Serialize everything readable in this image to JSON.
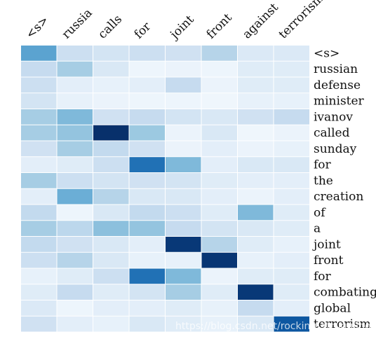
{
  "chart_data": {
    "type": "heatmap",
    "x_labels": [
      "<s>",
      "russia",
      "calls",
      "for",
      "joint",
      "front",
      "against",
      "terrorism"
    ],
    "y_labels": [
      "<s>",
      "russian",
      "defense",
      "minister",
      "ivanov",
      "called",
      "sunday",
      "for",
      "the",
      "creation",
      "of",
      "a",
      "joint",
      "front",
      "for",
      "combating",
      "global",
      "terrorism"
    ],
    "values": [
      [
        0.55,
        0.22,
        0.18,
        0.22,
        0.2,
        0.3,
        0.14,
        0.14
      ],
      [
        0.25,
        0.35,
        0.15,
        0.05,
        0.06,
        0.05,
        0.12,
        0.12
      ],
      [
        0.22,
        0.1,
        0.08,
        0.1,
        0.25,
        0.06,
        0.12,
        0.12
      ],
      [
        0.18,
        0.08,
        0.06,
        0.05,
        0.05,
        0.04,
        0.08,
        0.08
      ],
      [
        0.35,
        0.45,
        0.2,
        0.25,
        0.18,
        0.15,
        0.2,
        0.25
      ],
      [
        0.35,
        0.4,
        1.0,
        0.38,
        0.06,
        0.15,
        0.04,
        0.06
      ],
      [
        0.2,
        0.35,
        0.26,
        0.2,
        0.06,
        0.1,
        0.06,
        0.08
      ],
      [
        0.1,
        0.12,
        0.22,
        0.75,
        0.45,
        0.1,
        0.15,
        0.15
      ],
      [
        0.35,
        0.22,
        0.18,
        0.2,
        0.18,
        0.12,
        0.1,
        0.1
      ],
      [
        0.1,
        0.5,
        0.3,
        0.15,
        0.15,
        0.1,
        0.06,
        0.1
      ],
      [
        0.26,
        0.05,
        0.15,
        0.26,
        0.22,
        0.12,
        0.45,
        0.12
      ],
      [
        0.35,
        0.28,
        0.42,
        0.4,
        0.25,
        0.18,
        0.15,
        0.12
      ],
      [
        0.26,
        0.2,
        0.15,
        0.1,
        0.97,
        0.3,
        0.12,
        0.08
      ],
      [
        0.22,
        0.3,
        0.15,
        0.08,
        0.08,
        0.98,
        0.08,
        0.1
      ],
      [
        0.08,
        0.12,
        0.22,
        0.75,
        0.45,
        0.06,
        0.12,
        0.12
      ],
      [
        0.12,
        0.25,
        0.12,
        0.18,
        0.35,
        0.12,
        0.97,
        0.12
      ],
      [
        0.14,
        0.05,
        0.1,
        0.1,
        0.12,
        0.08,
        0.25,
        0.1
      ],
      [
        0.2,
        0.1,
        0.08,
        0.15,
        0.12,
        0.08,
        0.15,
        0.85
      ]
    ],
    "colormap": "Blues",
    "grid": false,
    "watermark": "https://blog.csdn.net/rocking_struggling"
  }
}
